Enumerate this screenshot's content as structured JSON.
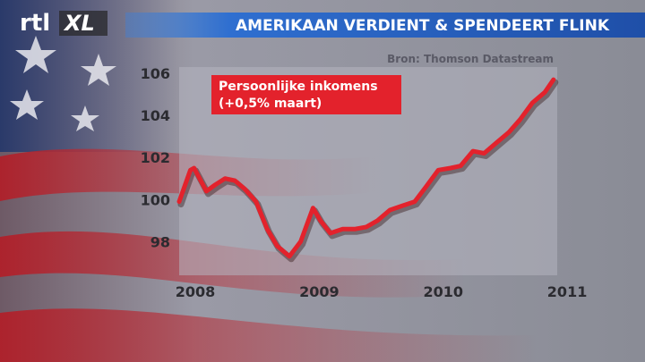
{
  "logo": {
    "left": "rtl",
    "right": "XL"
  },
  "chart_data": {
    "type": "line",
    "title": "AMERIKAAN VERDIENT & SPENDEERT FLINK",
    "source": "Bron: Thomson Datastream",
    "annotation": [
      "Persoonlijke inkomens",
      "(+0,5% maart)"
    ],
    "x": [
      2007.87,
      2007.96,
      2007.99,
      2008.09,
      2008.16,
      2008.24,
      2008.32,
      2008.4,
      2008.49,
      2008.58,
      2008.66,
      2008.76,
      2008.85,
      2008.95,
      2009.01,
      2009.09,
      2009.19,
      2009.29,
      2009.38,
      2009.47,
      2009.57,
      2009.67,
      2009.77,
      2009.86,
      2009.96,
      2010.06,
      2010.14,
      2010.24,
      2010.33,
      2010.43,
      2010.53,
      2010.62,
      2010.72,
      2010.82,
      2010.89
    ],
    "series": [
      {
        "name": "Persoonlijke inkomens",
        "color": "#e3222c",
        "values": [
          99.9,
          101.4,
          101.5,
          100.4,
          100.7,
          101.0,
          100.9,
          100.5,
          99.9,
          98.6,
          97.8,
          97.3,
          98.0,
          99.6,
          99.0,
          98.4,
          98.6,
          98.6,
          98.7,
          99.0,
          99.5,
          99.7,
          99.9,
          100.6,
          101.4,
          101.5,
          101.6,
          102.3,
          102.2,
          102.7,
          103.2,
          103.8,
          104.6,
          105.1,
          105.7
        ]
      }
    ],
    "xlim": [
      2007.87,
      2010.92
    ],
    "xticks": [
      2008,
      2009,
      2010,
      2011
    ],
    "ylim": [
      96.4,
      106.3
    ],
    "yticks": [
      98,
      100,
      102,
      104,
      106
    ],
    "grid": false
  }
}
